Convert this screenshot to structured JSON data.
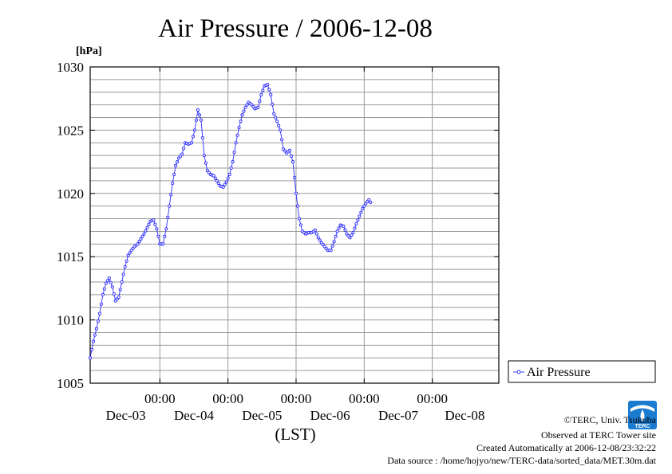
{
  "chart_data": {
    "type": "line",
    "title": "Air Pressure / 2006-12-08",
    "ylabel": "[hPa]",
    "xlabel": "(LST)",
    "ylim": [
      1005,
      1030
    ],
    "yticks": [
      1005,
      1010,
      1015,
      1020,
      1025,
      1030
    ],
    "xlim": [
      0,
      129
    ],
    "xticks": [
      {
        "x": 22,
        "time": "00:00",
        "date": "Dec-03"
      },
      {
        "x": 43.5,
        "time": "00:00",
        "date": "Dec-04"
      },
      {
        "x": 65,
        "time": "00:00",
        "date": "Dec-05"
      },
      {
        "x": 86.5,
        "time": "00:00",
        "date": "Dec-06"
      },
      {
        "x": 108,
        "time": "00:00",
        "date": "Dec-07"
      },
      {
        "x": 129,
        "time": "",
        "date": "Dec-08"
      }
    ],
    "grid": true,
    "legend_position": "right",
    "series": [
      {
        "name": "Air Pressure",
        "color": "#2b2bff",
        "anchors": [
          [
            0,
            1007.0
          ],
          [
            1,
            1008.3
          ],
          [
            2,
            1009.3
          ],
          [
            3,
            1010.5
          ],
          [
            4,
            1012.0
          ],
          [
            5,
            1012.9
          ],
          [
            6,
            1013.3
          ],
          [
            7,
            1012.6
          ],
          [
            8,
            1011.5
          ],
          [
            9,
            1011.8
          ],
          [
            10,
            1013.0
          ],
          [
            11,
            1014.2
          ],
          [
            12,
            1015.1
          ],
          [
            13,
            1015.5
          ],
          [
            14,
            1015.8
          ],
          [
            15,
            1016.0
          ],
          [
            16,
            1016.4
          ],
          [
            17,
            1016.8
          ],
          [
            18,
            1017.3
          ],
          [
            19,
            1017.8
          ],
          [
            20,
            1017.9
          ],
          [
            21,
            1017.2
          ],
          [
            22,
            1016.0
          ],
          [
            23,
            1016.0
          ],
          [
            24,
            1017.2
          ],
          [
            25,
            1019.0
          ],
          [
            26,
            1020.8
          ],
          [
            27,
            1022.2
          ],
          [
            28,
            1022.8
          ],
          [
            29,
            1023.1
          ],
          [
            30,
            1024.0
          ],
          [
            31,
            1023.9
          ],
          [
            32,
            1024.0
          ],
          [
            33,
            1025.0
          ],
          [
            34,
            1026.6
          ],
          [
            35,
            1025.8
          ],
          [
            36,
            1023.0
          ],
          [
            37,
            1021.8
          ],
          [
            38,
            1021.5
          ],
          [
            39,
            1021.4
          ],
          [
            40,
            1021.0
          ],
          [
            41,
            1020.6
          ],
          [
            42,
            1020.5
          ],
          [
            43,
            1020.9
          ],
          [
            44,
            1021.5
          ],
          [
            45,
            1022.5
          ],
          [
            46,
            1024.0
          ],
          [
            47,
            1025.2
          ],
          [
            48,
            1026.2
          ],
          [
            49,
            1026.8
          ],
          [
            50,
            1027.2
          ],
          [
            51,
            1027.0
          ],
          [
            52,
            1026.7
          ],
          [
            53,
            1026.8
          ],
          [
            54,
            1027.8
          ],
          [
            55,
            1028.5
          ],
          [
            56,
            1028.6
          ],
          [
            57,
            1027.8
          ],
          [
            58,
            1026.3
          ],
          [
            59,
            1025.7
          ],
          [
            60,
            1025.0
          ],
          [
            61,
            1023.5
          ],
          [
            62,
            1023.2
          ],
          [
            63,
            1023.4
          ],
          [
            64,
            1022.5
          ],
          [
            65,
            1020.0
          ],
          [
            66,
            1018.0
          ],
          [
            67,
            1017.0
          ],
          [
            68,
            1016.8
          ],
          [
            69,
            1016.9
          ],
          [
            70,
            1016.9
          ],
          [
            71,
            1017.1
          ],
          [
            72,
            1016.5
          ],
          [
            73,
            1016.1
          ],
          [
            74,
            1015.8
          ],
          [
            75,
            1015.5
          ],
          [
            76,
            1015.5
          ],
          [
            77,
            1016.2
          ],
          [
            78,
            1017.0
          ],
          [
            79,
            1017.5
          ],
          [
            80,
            1017.4
          ],
          [
            81,
            1016.8
          ],
          [
            82,
            1016.5
          ],
          [
            83,
            1016.9
          ],
          [
            84,
            1017.6
          ],
          [
            85,
            1018.2
          ],
          [
            86,
            1018.8
          ],
          [
            87,
            1019.2
          ],
          [
            88,
            1019.5
          ],
          [
            88.5,
            1019.3
          ]
        ]
      }
    ]
  },
  "footer": {
    "copyright": "©TERC, Univ. Tsukuba",
    "observed": "Observed at TERC Tower site",
    "created": "Created Automatically at 2006-12-08/23:32:22",
    "source": "Data source : /home/hojyo/new/TERC-data/sorted_data/MET.30m.dat",
    "logo_text": "TERC"
  }
}
